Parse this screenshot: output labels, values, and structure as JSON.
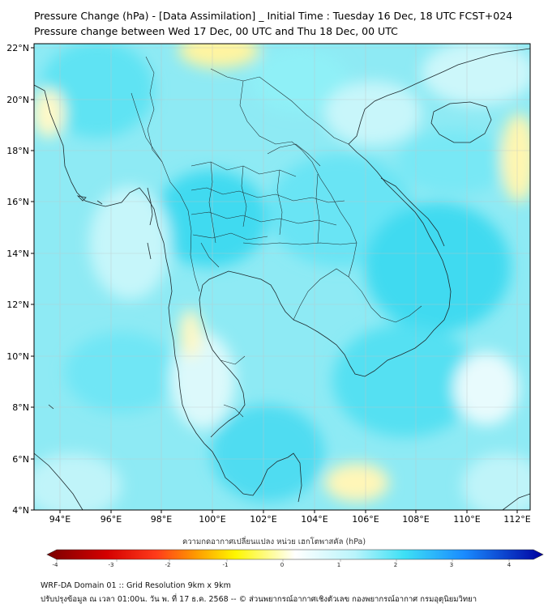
{
  "title_line1": "Pressure Change (hPa) - [Data Assimilation] _ Initial Time : Tuesday 16 Dec, 18 UTC FCST+024",
  "title_line2": "Pressure change between Wed 17 Dec, 00 UTC and Thu 18 Dec, 00 UTC",
  "lat_labels": [
    "22°N",
    "20°N",
    "18°N",
    "16°N",
    "14°N",
    "12°N",
    "10°N",
    "8°N",
    "6°N",
    "4°N"
  ],
  "lon_labels": [
    "94°E",
    "96°E",
    "98°E",
    "100°E",
    "102°E",
    "104°E",
    "106°E",
    "108°E",
    "110°E",
    "112°E"
  ],
  "colorbar": {
    "label": "ความกดอากาศเปลี่ยนแปลง หน่วย เฮกโตพาสคัล (hPa)",
    "min": -4,
    "max": 4,
    "ticks": [
      "-4",
      "-3",
      "-2",
      "-1",
      "0",
      "1",
      "2",
      "3",
      "4"
    ],
    "colors": {
      "neg_dark": "#7a0000",
      "neg_red": "#ff1a1a",
      "neg_orange": "#ff9a00",
      "neg_yellow": "#fff700",
      "zero": "#ffffff",
      "pos_cyan": "#3ee0f5",
      "pos_blue": "#1a8cff",
      "pos_dark": "#0000a0"
    }
  },
  "footer_line1": "WRF-DA Domain 01 :: Grid Resolution 9km x 9km",
  "footer_line2": "ปรับปรุงข้อมูล ณ เวลา 01:00น. วัน พ. ที่ 17 ธ.ค. 2568 -- © ส่วนพยากรณ์อากาศเชิงตัวเลข กองพยากรณ์อากาศ กรมอุตุนิยมวิทยา"
}
